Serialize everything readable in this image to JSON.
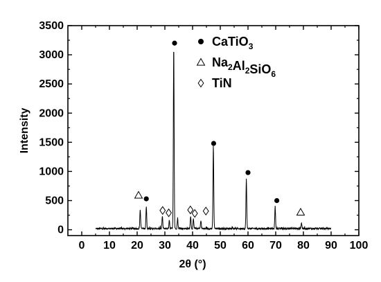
{
  "chart_data": {
    "type": "line",
    "xlabel": "2θ (°)",
    "ylabel": "Intensity",
    "xlim": [
      -5,
      100
    ],
    "ylim": [
      -100,
      3500
    ],
    "x_ticks": [
      0,
      10,
      20,
      30,
      40,
      50,
      60,
      70,
      80,
      90,
      100
    ],
    "x_tick_labels": [
      "0",
      "10",
      "20",
      "30",
      "40",
      "50",
      "60",
      "70",
      "80",
      "90",
      "100"
    ],
    "y_ticks": [
      0,
      500,
      1000,
      1500,
      2000,
      2500,
      3000,
      3500
    ],
    "y_tick_labels": [
      "0",
      "500",
      "1000",
      "1500",
      "2000",
      "2500",
      "3000",
      "3500"
    ],
    "grid": false,
    "legend_position": "top-right",
    "legend": [
      {
        "marker": "●",
        "parts": [
          {
            "t": "CaTiO"
          },
          {
            "t": "3",
            "sub": true
          }
        ]
      },
      {
        "marker": "△",
        "parts": [
          {
            "t": "Na"
          },
          {
            "t": "2",
            "sub": true
          },
          {
            "t": "Al"
          },
          {
            "t": "2",
            "sub": true
          },
          {
            "t": "SiO"
          },
          {
            "t": "6",
            "sub": true
          }
        ]
      },
      {
        "marker": "◇",
        "parts": [
          {
            "t": "TiN"
          }
        ]
      }
    ],
    "pattern_range": [
      5,
      90
    ],
    "baseline": 20,
    "peaks": [
      {
        "x": 21.1,
        "y": 330
      },
      {
        "x": 23.3,
        "y": 380
      },
      {
        "x": 29.1,
        "y": 210
      },
      {
        "x": 31.6,
        "y": 150
      },
      {
        "x": 33.2,
        "y": 3150
      },
      {
        "x": 34.6,
        "y": 180
      },
      {
        "x": 39.3,
        "y": 220
      },
      {
        "x": 40.3,
        "y": 160
      },
      {
        "x": 43.0,
        "y": 140
      },
      {
        "x": 47.5,
        "y": 1420
      },
      {
        "x": 59.4,
        "y": 850
      },
      {
        "x": 69.8,
        "y": 380
      },
      {
        "x": 79.3,
        "y": 100
      }
    ],
    "annotations": [
      {
        "symbol": "triangle",
        "x": 20.5,
        "y": 590
      },
      {
        "symbol": "circle",
        "x": 23.3,
        "y": 530
      },
      {
        "symbol": "diamond",
        "x": 29.2,
        "y": 330
      },
      {
        "symbol": "diamond",
        "x": 31.4,
        "y": 290
      },
      {
        "symbol": "circle",
        "x": 33.5,
        "y": 3200
      },
      {
        "symbol": "diamond",
        "x": 39.2,
        "y": 340
      },
      {
        "symbol": "diamond",
        "x": 40.8,
        "y": 280
      },
      {
        "symbol": "diamond",
        "x": 44.8,
        "y": 320
      },
      {
        "symbol": "circle",
        "x": 47.6,
        "y": 1480
      },
      {
        "symbol": "circle",
        "x": 60.0,
        "y": 980
      },
      {
        "symbol": "circle",
        "x": 70.4,
        "y": 500
      },
      {
        "symbol": "triangle",
        "x": 79.0,
        "y": 300
      }
    ]
  }
}
